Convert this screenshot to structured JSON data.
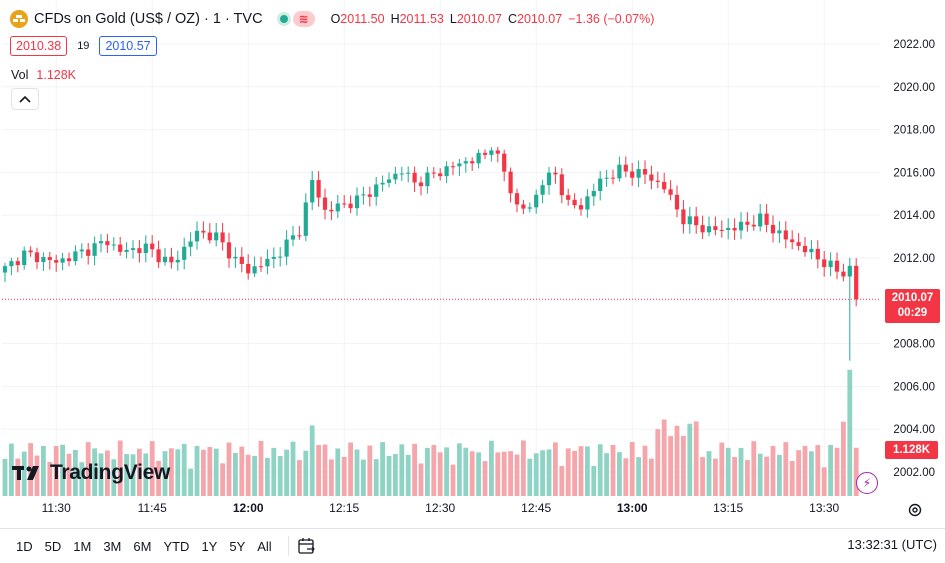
{
  "header": {
    "symbol_title": "CFDs on Gold (US$ / OZ) · 1 · TVC",
    "ohlc": [
      {
        "k": "O",
        "v": "2011.50"
      },
      {
        "k": "H",
        "v": "2011.53"
      },
      {
        "k": "L",
        "v": "2010.07"
      },
      {
        "k": "C",
        "v": "2010.07"
      }
    ],
    "change": "−1.36 (−0.07%)",
    "bid": "2010.38",
    "spread": "19",
    "ask": "2010.57",
    "vol_label": "Vol",
    "vol_value": "1.128K"
  },
  "logo_text": "TradingView",
  "last_price": "2010.07",
  "countdown": "00:29",
  "vol_tag": "1.128K",
  "bottom": {
    "ranges": [
      "1D",
      "5D",
      "1M",
      "3M",
      "6M",
      "YTD",
      "1Y",
      "5Y",
      "All"
    ],
    "clock": "13:32:31 (UTC)"
  },
  "colors": {
    "up": "#22ab94",
    "down": "#f23645",
    "up_vol": "#8fd3c5",
    "down_vol": "#f5a6ab",
    "grid": "#f0f3fa"
  },
  "chart_data": {
    "type": "candlestick",
    "y_axis": {
      "min": 2001,
      "max": 2023,
      "ticks": [
        2002,
        2004,
        2006,
        2008,
        2010,
        2012,
        2014,
        2016,
        2018,
        2020,
        2022
      ],
      "tick_labels": [
        "2002.00",
        "2004.00",
        "2006.00",
        "2008.00",
        "2010.00",
        "2012.00",
        "2014.00",
        "2016.00",
        "2018.00",
        "2020.00",
        "2022.00"
      ]
    },
    "x_axis": {
      "start": "11:22",
      "end": "13:32",
      "ticks": [
        "11:30",
        "11:45",
        "12:00",
        "12:15",
        "12:30",
        "12:45",
        "13:00",
        "13:15",
        "13:30"
      ],
      "bold": [
        "12:00",
        "13:00"
      ]
    },
    "anchors": [
      [
        0,
        2011.5
      ],
      [
        3,
        2012.2
      ],
      [
        8,
        2011.8
      ],
      [
        13,
        2012.4
      ],
      [
        16,
        2012.8
      ],
      [
        18,
        2012.3
      ],
      [
        22,
        2012.5
      ],
      [
        26,
        2011.7
      ],
      [
        30,
        2013.2
      ],
      [
        33,
        2013.0
      ],
      [
        36,
        2011.9
      ],
      [
        38,
        2011.4
      ],
      [
        42,
        2012.0
      ],
      [
        46,
        2013.3
      ],
      [
        48,
        2015.6
      ],
      [
        50,
        2014.2
      ],
      [
        55,
        2014.7
      ],
      [
        58,
        2015.3
      ],
      [
        62,
        2016.1
      ],
      [
        64,
        2015.5
      ],
      [
        70,
        2016.3
      ],
      [
        75,
        2016.8
      ],
      [
        76,
        2017.3
      ],
      [
        78,
        2016.0
      ],
      [
        80,
        2014.4
      ],
      [
        82,
        2014.3
      ],
      [
        84,
        2015.6
      ],
      [
        86,
        2015.9
      ],
      [
        88,
        2014.5
      ],
      [
        90,
        2014.4
      ],
      [
        93,
        2015.6
      ],
      [
        96,
        2016.1
      ],
      [
        100,
        2015.9
      ],
      [
        103,
        2015.3
      ],
      [
        106,
        2013.8
      ],
      [
        110,
        2013.3
      ],
      [
        114,
        2013.4
      ],
      [
        118,
        2013.8
      ],
      [
        122,
        2012.9
      ],
      [
        125,
        2012.4
      ],
      [
        130,
        2011.4
      ],
      [
        131,
        2011.3
      ],
      [
        132,
        2011.5
      ],
      [
        133,
        2010.07
      ]
    ],
    "volume": {
      "scale_max": 70,
      "unit": "K"
    },
    "last_close": 2010.07,
    "spike_low": 2007.2
  }
}
